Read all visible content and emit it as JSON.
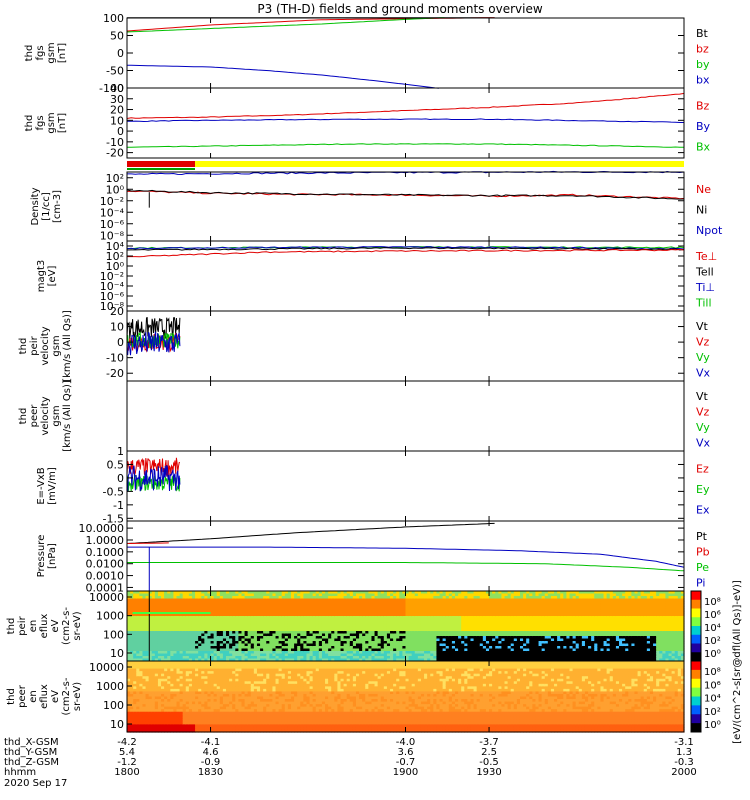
{
  "title": "P3 (TH-D) fields and ground moments overview",
  "colors": {
    "black": "#000000",
    "red": "#e00000",
    "green": "#00c000",
    "blue": "#0000c0",
    "yellow": "#ffff00",
    "axis": "#000000"
  },
  "chart_data": [
    {
      "type": "line",
      "key": "p1",
      "ylabel": [
        "thd",
        "fgs",
        "gsm",
        "[nT]"
      ],
      "ylim": [
        -100,
        100
      ],
      "yticks": [
        100,
        50,
        0,
        -50,
        -100
      ],
      "log": false,
      "legend": [
        "Bt",
        "bz",
        "by",
        "bx"
      ],
      "series": [
        {
          "name": "Bt",
          "color": "#000000",
          "x": [
            1800,
            1900,
            1932
          ],
          "y": [
            101,
            101,
            101
          ]
        },
        {
          "name": "bz",
          "color": "#e00000",
          "x": [
            1800,
            1830,
            1870,
            1932
          ],
          "y": [
            63,
            80,
            95,
            101
          ]
        },
        {
          "name": "by",
          "color": "#00c000",
          "x": [
            1800,
            1830,
            1870,
            1900,
            1914
          ],
          "y": [
            60,
            70,
            83,
            96,
            101
          ]
        },
        {
          "name": "bx",
          "color": "#0000c0",
          "x": [
            1800,
            1830,
            1850,
            1870,
            1890,
            1912
          ],
          "y": [
            -35,
            -40,
            -50,
            -63,
            -80,
            -101
          ]
        }
      ]
    },
    {
      "type": "line",
      "key": "p2",
      "ylabel": [
        "thd",
        "fgs",
        "gsm",
        "[nT]"
      ],
      "ylim": [
        -25,
        40
      ],
      "yticks": [
        40,
        30,
        20,
        10,
        0,
        -10,
        -20
      ],
      "log": false,
      "legend": [
        "Bz",
        "By",
        "Bx"
      ],
      "series": [
        {
          "name": "Bz",
          "color": "#e00000",
          "x": [
            1800,
            1830,
            1860,
            1900,
            1930,
            1960,
            1980,
            2000
          ],
          "y": [
            12,
            13,
            15,
            19,
            22,
            26,
            30,
            35
          ]
        },
        {
          "name": "By",
          "color": "#0000c0",
          "x": [
            1800,
            1830,
            1880,
            1930,
            1980,
            2000
          ],
          "y": [
            9,
            10,
            11,
            11,
            9,
            8
          ]
        },
        {
          "name": "Bx",
          "color": "#00c000",
          "x": [
            1800,
            1830,
            1880,
            1930,
            1980,
            2000
          ],
          "y": [
            -15,
            -14,
            -12,
            -12,
            -14,
            -15
          ]
        }
      ]
    },
    {
      "type": "line",
      "key": "p3",
      "ylabel": [
        "Density",
        "[1/cc]",
        "[cm-3]"
      ],
      "ylim": [
        -9,
        3
      ],
      "yticks": [
        2,
        0,
        -2,
        -4,
        -6,
        -8
      ],
      "log": true,
      "legend": [
        "Ne",
        "Ni",
        "Npot"
      ],
      "series": [
        {
          "name": "Npot",
          "color": "#0000c0",
          "x": [
            1800,
            1850,
            1900,
            1950,
            2000
          ],
          "y": [
            2.6,
            2.8,
            2.9,
            3.0,
            3.0
          ]
        },
        {
          "name": "Ne",
          "color": "#e00000",
          "x": [
            1800,
            1830,
            1860,
            1900,
            1930,
            1960,
            2000
          ],
          "y": [
            -0.3,
            -0.7,
            -0.9,
            -1.0,
            -1.2,
            -1.0,
            -1.6
          ]
        },
        {
          "name": "Ni",
          "color": "#000000",
          "x": [
            1800,
            1830,
            1860,
            1900,
            1930,
            1960,
            2000
          ],
          "y": [
            -0.2,
            -0.6,
            -0.8,
            -1.0,
            -1.1,
            -1.1,
            -1.7
          ]
        }
      ]
    },
    {
      "type": "line",
      "key": "p4",
      "ylabel": [
        "magt3",
        "[eV]"
      ],
      "ylim": [
        -9,
        5
      ],
      "yticks": [
        4,
        2,
        0,
        -2,
        -4,
        -6,
        -8
      ],
      "log": true,
      "legend": [
        "Te⊥",
        "Tell",
        "Ti⊥",
        "Till"
      ],
      "series": [
        {
          "name": "Till",
          "color": "#00c000",
          "x": [
            1800,
            1900,
            2000
          ],
          "y": [
            3.6,
            3.8,
            3.7
          ]
        },
        {
          "name": "Ti⊥",
          "color": "#0000c0",
          "x": [
            1800,
            1850,
            1900,
            1950,
            2000
          ],
          "y": [
            3.5,
            3.7,
            3.8,
            3.7,
            3.4
          ]
        },
        {
          "name": "Tell",
          "color": "#000000",
          "x": [
            1800,
            1850,
            1900,
            1950,
            2000
          ],
          "y": [
            3.2,
            3.4,
            3.6,
            3.5,
            3.3
          ]
        },
        {
          "name": "Te⊥",
          "color": "#e00000",
          "x": [
            1800,
            1830,
            1850,
            1900,
            1950,
            2000
          ],
          "y": [
            1.8,
            2.4,
            2.8,
            3.0,
            3.1,
            3.2
          ]
        }
      ]
    },
    {
      "type": "scatter",
      "key": "p5",
      "ylabel": [
        "thd",
        "peir",
        "velocity",
        "gsm",
        "[km/s (All Qs)]"
      ],
      "ylim": [
        -25,
        20
      ],
      "yticks": [
        20,
        10,
        0,
        -10,
        -20
      ],
      "log": false,
      "legend": [
        "Vt",
        "Vz",
        "Vy",
        "Vx"
      ],
      "xrange": [
        1800,
        1819
      ],
      "series": [
        {
          "name": "Vt",
          "color": "#000000",
          "center": 9,
          "spread": 7
        },
        {
          "name": "Vz",
          "color": "#e00000",
          "center": 0,
          "spread": 6
        },
        {
          "name": "Vy",
          "color": "#00c000",
          "center": 1,
          "spread": 5
        },
        {
          "name": "Vx",
          "color": "#0000c0",
          "center": -1,
          "spread": 8
        }
      ]
    },
    {
      "type": "line",
      "key": "p6",
      "ylabel": [
        "thd",
        "peer",
        "velocity",
        "gsm",
        "[km/s (All Qs)]"
      ],
      "ylim": [
        0,
        1
      ],
      "yticks": [],
      "log": false,
      "legend": [
        "Vt",
        "Vz",
        "Vy",
        "Vx"
      ],
      "series": []
    },
    {
      "type": "scatter",
      "key": "p7",
      "ylabel": [
        "E=-VxB",
        "[mV/m]"
      ],
      "ylim": [
        -1.6,
        1.0
      ],
      "yticks": [
        1.0,
        0.5,
        0.0,
        -0.5,
        -1.0,
        -1.5
      ],
      "log": false,
      "legend": [
        "Ez",
        "Ey",
        "Ex"
      ],
      "xrange": [
        1800,
        1819
      ],
      "series": [
        {
          "name": "Ez",
          "color": "#e00000",
          "center": 0.4,
          "spread": 0.35
        },
        {
          "name": "Ey",
          "color": "#00c000",
          "center": -0.2,
          "spread": 0.3
        },
        {
          "name": "Ex",
          "color": "#0000c0",
          "center": 0.0,
          "spread": 0.5
        }
      ]
    },
    {
      "type": "line",
      "key": "p8",
      "ylabel": [
        "Pressure",
        "[nPa]"
      ],
      "ylim": [
        -4.3,
        1.6
      ],
      "yticks": [
        "10.0000",
        "1.0000",
        "0.1000",
        "0.0100",
        "0.0010",
        "0.0001"
      ],
      "ytickvals": [
        1,
        0,
        -1,
        -2,
        -3,
        -4
      ],
      "log": true,
      "legend": [
        "Pt",
        "Pb",
        "Pe",
        "Pi"
      ],
      "series": [
        {
          "name": "Pt",
          "color": "#000000",
          "x": [
            1800,
            1830,
            1860,
            1900,
            1932
          ],
          "y": [
            -0.3,
            0.1,
            0.6,
            1.1,
            1.4
          ]
        },
        {
          "name": "Pb",
          "color": "#e00000",
          "x": [
            1800,
            1815
          ],
          "y": [
            -0.3,
            -0.25
          ]
        },
        {
          "name": "Pi",
          "color": "#0000c0",
          "x": [
            1800,
            1850,
            1900,
            1940,
            1970,
            1990,
            2000
          ],
          "y": [
            -0.6,
            -0.6,
            -0.7,
            -0.9,
            -1.2,
            -1.8,
            -2.3
          ]
        },
        {
          "name": "Pe",
          "color": "#00c000",
          "x": [
            1800,
            1850,
            1900,
            1950,
            1980,
            2000
          ],
          "y": [
            -1.9,
            -1.9,
            -1.9,
            -2.0,
            -2.3,
            -2.6
          ]
        }
      ]
    },
    {
      "type": "heatmap",
      "key": "p9",
      "ylabel": [
        "thd",
        "peir",
        "en",
        "eflux",
        "eV",
        "(cm2-s-",
        "sr-eV)"
      ],
      "yticks": [
        "10000",
        "1000",
        "100",
        "10"
      ],
      "log": true
    },
    {
      "type": "heatmap",
      "key": "p10",
      "ylabel": [
        "thd",
        "peer",
        "en",
        "eflux",
        "eV",
        "(cm2-s-",
        "sr-eV)"
      ],
      "yticks": [
        "10000",
        "1000",
        "100",
        "10"
      ],
      "log": true
    }
  ],
  "colorbar": {
    "label": "[eV/(cm^2-s[sr@dfl(All Qs)]-eV)]",
    "p9_ticks": [
      "10⁸",
      "10⁶",
      "10⁴",
      "10²",
      "10⁰"
    ],
    "p10_ticks": [
      "10⁸",
      "10⁶",
      "10⁴",
      "10²",
      "10⁰"
    ]
  },
  "xaxis": {
    "xlim": [
      1800,
      2000
    ],
    "rows": [
      {
        "label": "thd_X-GSM",
        "values": [
          "-4.2",
          "-4.1",
          "-4.0",
          "-3.7",
          "-3.1"
        ]
      },
      {
        "label": "thd_Y-GSM",
        "values": [
          "5.4",
          "4.6",
          "3.6",
          "2.5",
          "1.3"
        ]
      },
      {
        "label": "thd_Z-GSM",
        "values": [
          "-1.2",
          "-0.9",
          "-0.7",
          "-0.5",
          "-0.3"
        ]
      },
      {
        "label": "hhmm",
        "values": [
          "1800",
          "1830",
          "1900",
          "1930",
          "2000"
        ]
      }
    ],
    "date": "2020 Sep 17"
  }
}
